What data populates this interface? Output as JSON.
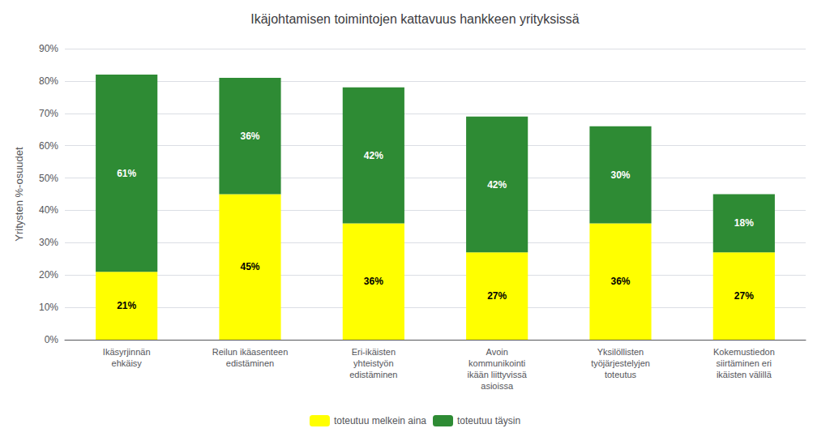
{
  "chart_data": {
    "type": "bar",
    "title": "Ikäjohtamisen toimintojen kattavuus hankkeen yrityksissä",
    "ylabel": "Yritysten %-osuudet",
    "categories": [
      "Ikäsyrjinnän\nehkäisy",
      "Reilun ikäasenteen\nedistäminen",
      "Eri-ikäisten\nyhteistyön\nedistäminen",
      "Avoin\nkommunikointi\nikään liittyvissä\nasioissa",
      "Yksilöllisten\ntyöjärjestelyjen\ntoteutus",
      "Kokemustiedon\nsiirtäminen eri\nikäisten välillä"
    ],
    "series": [
      {
        "name": "toteutuu melkein aina",
        "color": "#FFFF00",
        "values": [
          21,
          45,
          36,
          27,
          36,
          27
        ],
        "value_labels": [
          "21%",
          "45%",
          "36%",
          "27%",
          "36%",
          "27%"
        ]
      },
      {
        "name": "toteutuu täysin",
        "color": "#2E8B34",
        "values": [
          61,
          36,
          42,
          42,
          30,
          18
        ],
        "value_labels": [
          "61%",
          "36%",
          "42%",
          "42%",
          "30%",
          "18%"
        ]
      }
    ],
    "stacked": true,
    "data_labels": true,
    "ylim": [
      0,
      90
    ],
    "yticks": [
      {
        "value": 0,
        "label": "0%"
      },
      {
        "value": 10,
        "label": "10%"
      },
      {
        "value": 20,
        "label": "20%"
      },
      {
        "value": 30,
        "label": "30%"
      },
      {
        "value": 40,
        "label": "40%"
      },
      {
        "value": 50,
        "label": "50%"
      },
      {
        "value": 60,
        "label": "60%"
      },
      {
        "value": 70,
        "label": "70%"
      },
      {
        "value": 80,
        "label": "80%"
      },
      {
        "value": 90,
        "label": "90%"
      }
    ],
    "grid": true,
    "legend": "bottom"
  }
}
